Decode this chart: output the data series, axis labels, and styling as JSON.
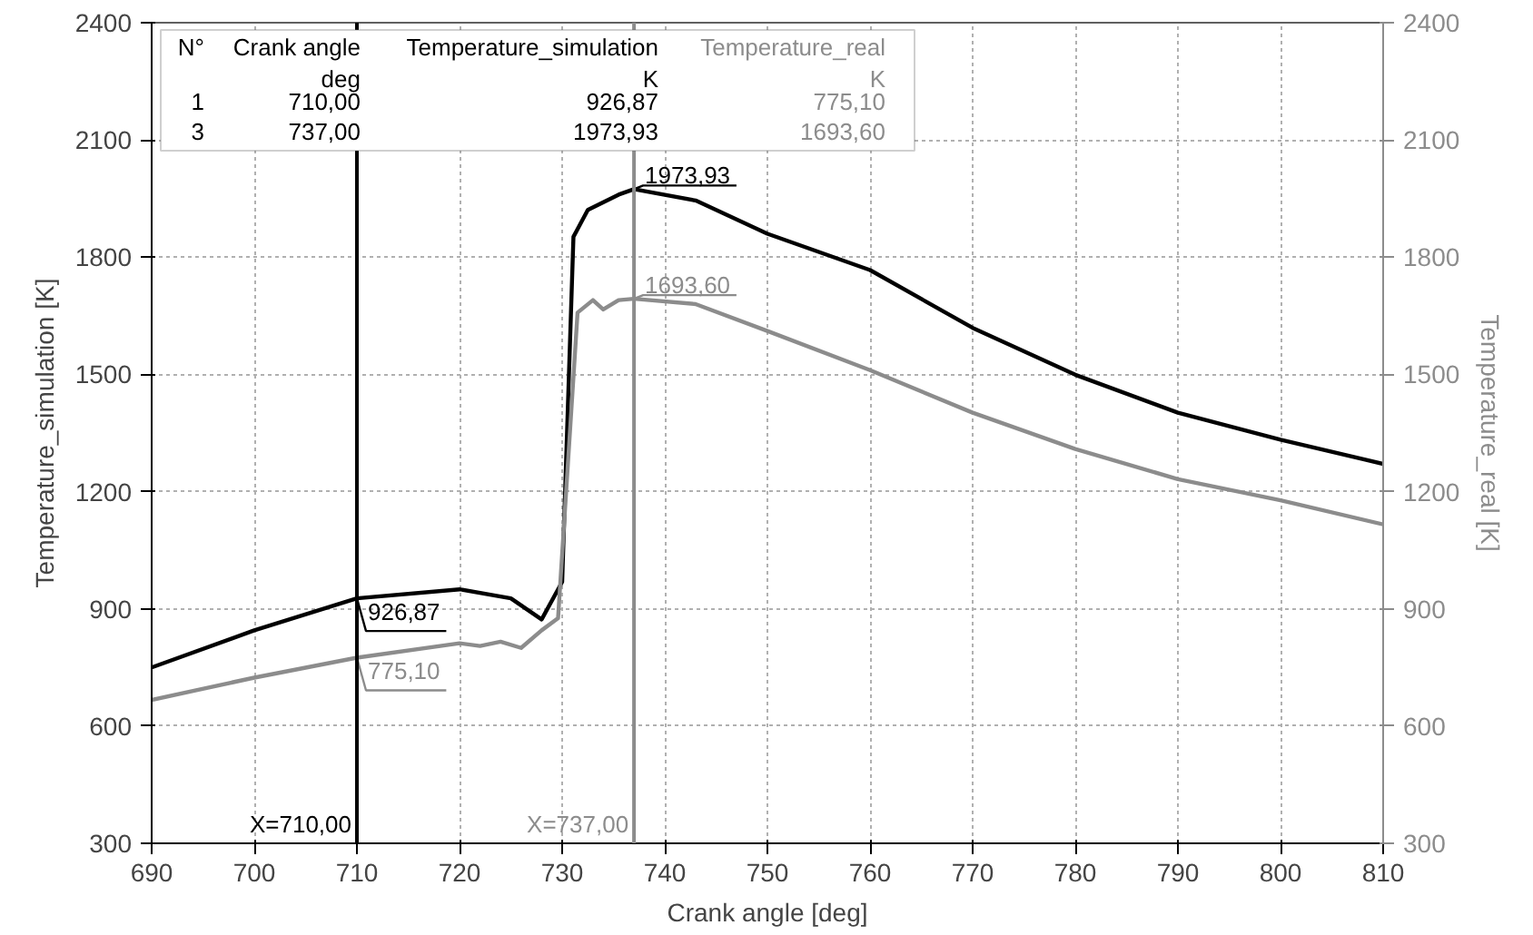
{
  "chart_data": {
    "type": "line",
    "xlabel": "Crank angle [deg]",
    "ylabel": "Temperature_simulation [K]",
    "y2label": "Temperature_real [K]",
    "xlim": [
      690,
      810
    ],
    "xticks": [
      690,
      700,
      710,
      720,
      730,
      740,
      750,
      760,
      770,
      780,
      790,
      800,
      810
    ],
    "ylim": [
      300,
      2400
    ],
    "yticks": [
      300,
      600,
      900,
      1200,
      1500,
      1800,
      2100,
      2400
    ],
    "y2lim": [
      300,
      2400
    ],
    "y2ticks": [
      300,
      600,
      900,
      1200,
      1500,
      1800,
      2100,
      2400
    ],
    "grid": true,
    "line_style": "solid",
    "marker": "none",
    "series": [
      {
        "color": "#000000",
        "x": [
          690,
          700,
          710,
          720,
          725,
          728,
          730,
          731.1,
          732.5,
          735.5,
          737,
          743,
          750,
          760,
          770,
          780,
          790,
          800,
          810
        ],
        "values": [
          750,
          845,
          926.87,
          950,
          927,
          873,
          969,
          1852,
          1921,
          1960,
          1973.93,
          1945,
          1860,
          1767,
          1619,
          1499,
          1402,
          1333,
          1271
        ]
      },
      {
        "color": "#8c8c8c",
        "axis": "y2",
        "x": [
          690,
          700,
          710,
          720,
          722,
          724,
          726,
          728,
          729.6,
          731.5,
          733,
          734,
          735.5,
          737,
          743,
          750,
          760,
          770,
          780,
          790,
          800,
          810
        ],
        "values": [
          667,
          724,
          775.1,
          812,
          805,
          816,
          800,
          845,
          876,
          1658,
          1690,
          1666,
          1690,
          1693.6,
          1680,
          1611,
          1511,
          1402,
          1309,
          1232,
          1178,
          1116
        ]
      }
    ],
    "ref_lines": [
      {
        "axis": "x",
        "value": 710,
        "label": "X=710,00",
        "color": "#000000"
      },
      {
        "axis": "x",
        "value": 737,
        "label": "X=737,00",
        "color": "#8c8c8c"
      }
    ],
    "annotations": [
      "N°",
      "Crank angle\ndeg",
      "Temperature_simulation\nK",
      "Temperature_real\nK",
      "1",
      "710,00",
      "926,87",
      "775,10",
      "3",
      "737,00",
      "1973,93",
      "1693,60",
      "926,87",
      "775,10",
      "1973,93",
      "1693,60"
    ]
  }
}
